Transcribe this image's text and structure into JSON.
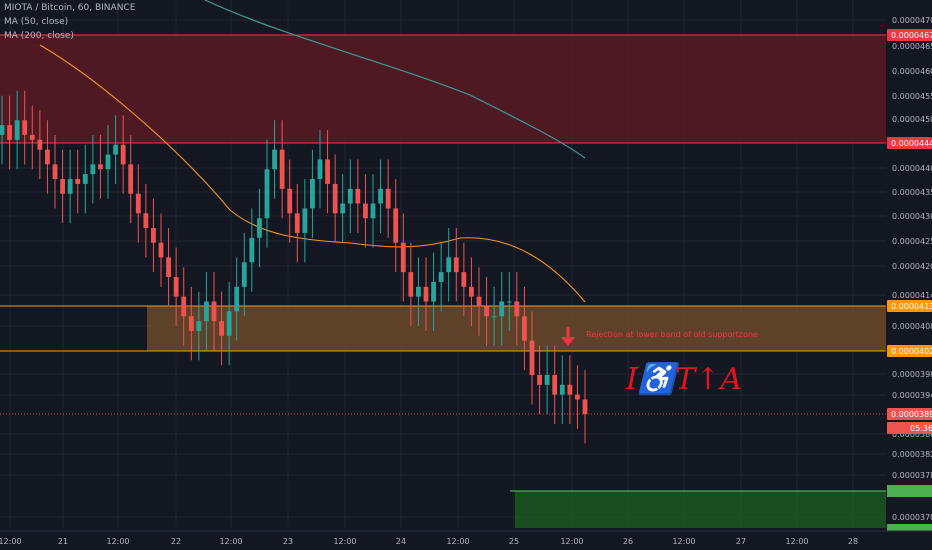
{
  "header": {
    "symbol_line": "MIOTA / Bitcoin, 60, BINANCE",
    "ma1": "MA (50, close)",
    "ma2": "MA (200, close)"
  },
  "colors": {
    "up": "#26a69a",
    "down": "#ef5350",
    "ma50": "#f7931a",
    "ma200": "#3c9a90",
    "resistance": "#f23645",
    "support": "#ff9800",
    "target": "#4caf50"
  },
  "chart_data": {
    "type": "candlestick",
    "x_ticks": [
      "12:00",
      "21",
      "12:00",
      "22",
      "12:00",
      "23",
      "12:00",
      "24",
      "12:00",
      "25",
      "12:00",
      "26",
      "12:00",
      "27",
      "12:00",
      "28"
    ],
    "y_ticks": [
      "0.00004700",
      "0.00004650",
      "0.00004600",
      "0.00004550",
      "0.00004500",
      "0.00004400",
      "0.00004350",
      "0.00004300",
      "0.00004250",
      "0.00004200",
      "0.00004140",
      "0.00004080",
      "0.00003980",
      "0.00003940",
      "0.00003860",
      "0.00003820",
      "0.00003780",
      "0.00003700"
    ],
    "price_tags": [
      {
        "label": "0.00004674",
        "kind": "resistance"
      },
      {
        "label": "0.00004448",
        "kind": "resistance"
      },
      {
        "label": "0.00004137",
        "kind": "support"
      },
      {
        "label": "0.00004029",
        "kind": "support"
      },
      {
        "label": "0.00003899",
        "kind": "last"
      },
      {
        "label": "05:36",
        "kind": "countdown"
      }
    ],
    "zones": [
      {
        "name": "resistance-zone",
        "from": 4.448e-05,
        "to": 4.674e-05
      },
      {
        "name": "support-zone",
        "from": 4.029e-05,
        "to": 4.137e-05
      },
      {
        "name": "target-zone",
        "from": 3.66e-05,
        "to": 3.745e-05
      }
    ],
    "annotation": "Rejection at lower band of old supportzone",
    "logo_text": "I♿T↑A",
    "candles_close": [
      4.49e-05,
      4.46e-05,
      4.5e-05,
      4.47e-05,
      4.46e-05,
      4.44e-05,
      4.41e-05,
      4.38e-05,
      4.35e-05,
      4.38e-05,
      4.37e-05,
      4.39e-05,
      4.41e-05,
      4.4e-05,
      4.43e-05,
      4.45e-05,
      4.41e-05,
      4.35e-05,
      4.31e-05,
      4.28e-05,
      4.25e-05,
      4.22e-05,
      4.18e-05,
      4.14e-05,
      4.1e-05,
      4.07e-05,
      4.09e-05,
      4.13e-05,
      4.09e-05,
      4.06e-05,
      4.11e-05,
      4.16e-05,
      4.21e-05,
      4.26e-05,
      4.3e-05,
      4.4e-05,
      4.44e-05,
      4.36e-05,
      4.31e-05,
      4.27e-05,
      4.32e-05,
      4.38e-05,
      4.42e-05,
      4.37e-05,
      4.31e-05,
      4.33e-05,
      4.36e-05,
      4.33e-05,
      4.3e-05,
      4.33e-05,
      4.36e-05,
      4.32e-05,
      4.25e-05,
      4.19e-05,
      4.14e-05,
      4.16e-05,
      4.13e-05,
      4.17e-05,
      4.19e-05,
      4.22e-05,
      4.19e-05,
      4.16e-05,
      4.14e-05,
      4.12e-05,
      4.1e-05,
      4.1e-05,
      4.13e-05,
      4.13e-05,
      4.1e-05,
      4.05e-05,
      3.98e-05,
      3.96e-05,
      3.98e-05,
      3.94e-05,
      3.96e-05,
      3.94e-05,
      3.93e-05,
      3.9e-05
    ]
  }
}
